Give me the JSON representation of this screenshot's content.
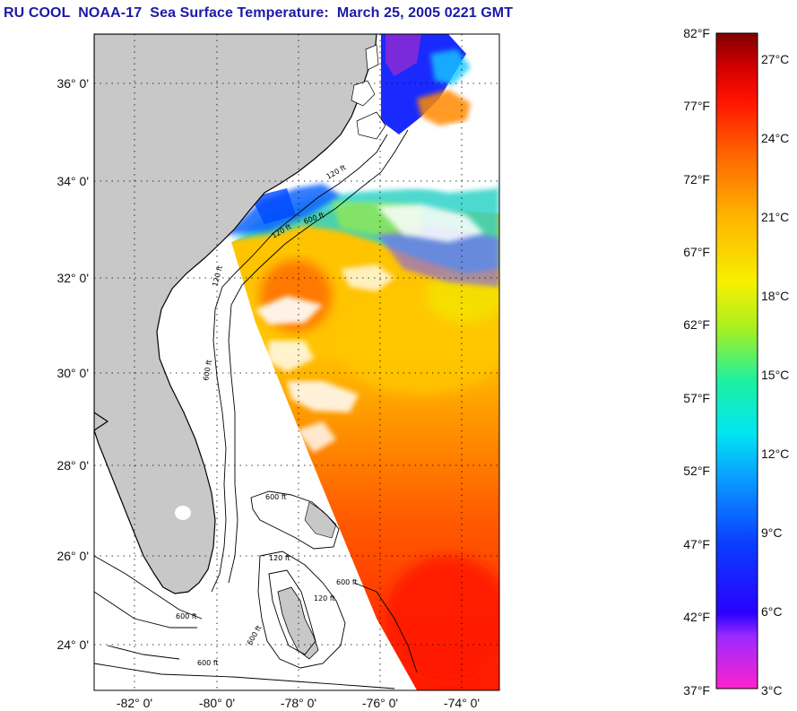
{
  "title": "RU COOL  NOAA-17  Sea Surface Temperature:  March 25, 2005 0221 GMT",
  "map": {
    "lat_labels": [
      "36° 0'",
      "34° 0'",
      "32° 0'",
      "30° 0'",
      "28° 0'",
      "26° 0'",
      "24° 0'"
    ],
    "lon_labels": [
      "-82° 0'",
      "-80° 0'",
      "-78° 0'",
      "-76° 0'",
      "-74° 0'"
    ],
    "contour_labels": [
      "120 ft",
      "600 ft",
      "120 ft",
      "600 ft",
      "600 ft",
      "120 ft",
      "600 ft",
      "120 ft",
      "600 ft",
      "120 ft",
      "600 ft",
      "600 ft"
    ]
  },
  "colorbar": {
    "fahrenheit": [
      "82°F",
      "77°F",
      "72°F",
      "67°F",
      "62°F",
      "57°F",
      "52°F",
      "47°F",
      "42°F",
      "37°F"
    ],
    "celsius": [
      "27°C",
      "24°C",
      "21°C",
      "18°C",
      "15°C",
      "12°C",
      "9°C",
      "6°C",
      "3°C"
    ]
  },
  "colors": {
    "land": "#c8c8c8",
    "title": "#1a1aa8"
  }
}
